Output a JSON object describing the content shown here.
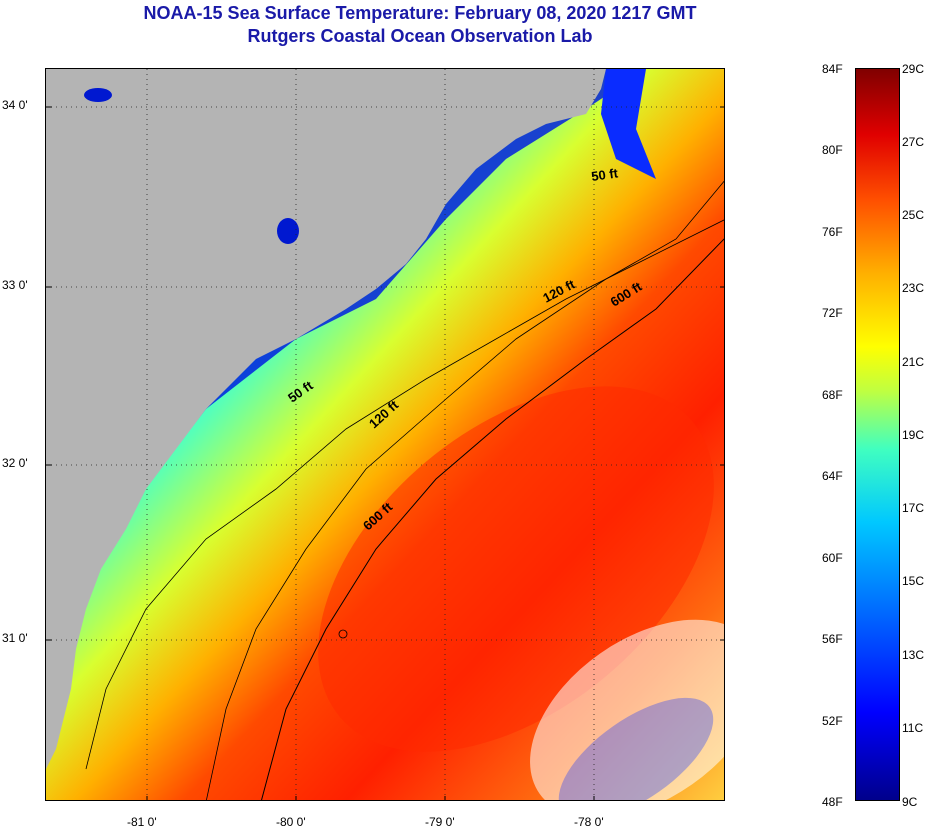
{
  "title": {
    "line1": "NOAA-15 Sea Surface Temperature:  February 08, 2020 1217 GMT",
    "line2": "Rutgers Coastal Ocean Observation Lab"
  },
  "map": {
    "lat_labels": [
      "34 0'",
      "33 0'",
      "32 0'",
      "31 0'"
    ],
    "lon_labels": [
      "-81 0'",
      "-80 0'",
      "-79 0'",
      "-78 0'"
    ],
    "depth_labels": [
      "50 ft",
      "50 ft",
      "120 ft",
      "120 ft",
      "600 ft",
      "600 ft"
    ],
    "colors": {
      "land": "#b4b4b4",
      "grid": "#222222"
    }
  },
  "colorbar": {
    "fahrenheit": [
      "84F",
      "80F",
      "76F",
      "72F",
      "68F",
      "64F",
      "60F",
      "56F",
      "52F",
      "48F"
    ],
    "celsius": [
      "29C",
      "27C",
      "25C",
      "23C",
      "21C",
      "19C",
      "17C",
      "15C",
      "13C",
      "11C",
      "9C"
    ]
  }
}
